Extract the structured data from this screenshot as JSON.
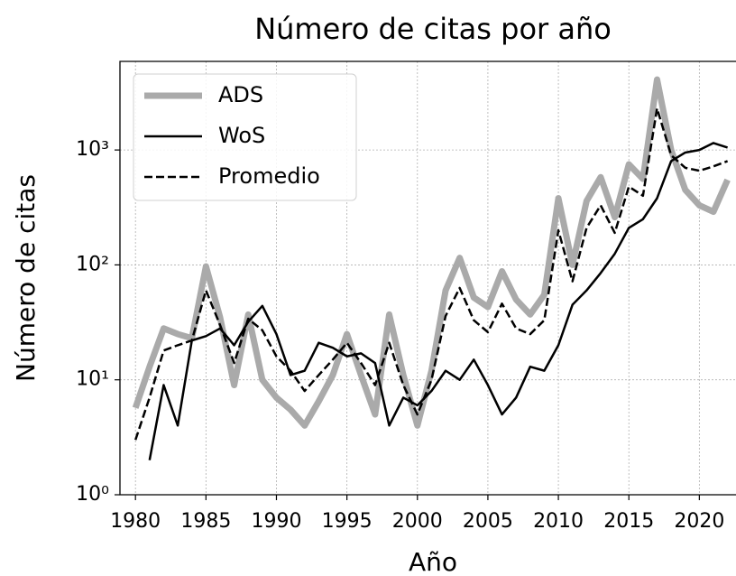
{
  "chart_data": {
    "type": "line",
    "title": "Número de citas por año",
    "xlabel": "Año",
    "ylabel": "Número de citas",
    "x": [
      1980,
      1981,
      1982,
      1983,
      1984,
      1985,
      1986,
      1987,
      1988,
      1989,
      1990,
      1991,
      1992,
      1993,
      1994,
      1995,
      1996,
      1997,
      1998,
      1999,
      2000,
      2001,
      2002,
      2003,
      2004,
      2005,
      2006,
      2007,
      2008,
      2009,
      2010,
      2011,
      2012,
      2013,
      2014,
      2015,
      2016,
      2017,
      2018,
      2019,
      2020,
      2021,
      2022
    ],
    "series": [
      {
        "name": "ADS",
        "color": "#aaaaaa",
        "linewidth": 7,
        "linestyle": "solid",
        "values": [
          5.7,
          13,
          28,
          25,
          23,
          97,
          35,
          9,
          37,
          10,
          7,
          5.5,
          4,
          6.5,
          11,
          25,
          11,
          5,
          37,
          11,
          4,
          12,
          60,
          115,
          52,
          43,
          88,
          50,
          37,
          55,
          380,
          100,
          360,
          580,
          260,
          750,
          560,
          4100,
          1000,
          450,
          330,
          290,
          550
        ]
      },
      {
        "name": "WoS",
        "color": "#000000",
        "linewidth": 2.5,
        "linestyle": "solid",
        "values": [
          null,
          2,
          9,
          4,
          22,
          24,
          28,
          20,
          32,
          44,
          25,
          11,
          12,
          21,
          19,
          16,
          17,
          14,
          4,
          7,
          6,
          8,
          12,
          10,
          15,
          9,
          5,
          7,
          13,
          12,
          20,
          45,
          60,
          85,
          125,
          210,
          250,
          380,
          800,
          950,
          1000,
          1150,
          1050
        ]
      },
      {
        "name": "Promedio",
        "color": "#000000",
        "linewidth": 2.5,
        "linestyle": "dashed",
        "values": [
          3,
          7,
          18,
          20,
          22,
          60,
          30,
          14,
          34,
          27,
          16,
          12,
          8,
          11,
          15,
          21,
          14,
          9,
          21,
          9,
          5,
          10,
          36,
          63,
          33,
          26,
          46,
          28,
          25,
          33,
          200,
          72,
          210,
          330,
          190,
          480,
          400,
          2300,
          900,
          700,
          660,
          720,
          800
        ]
      }
    ],
    "xlim": [
      1978.9,
      2022.6
    ],
    "xticks": [
      1980,
      1985,
      1990,
      1995,
      2000,
      2005,
      2010,
      2015,
      2020
    ],
    "ylim": [
      1,
      5900
    ],
    "yscale": "log",
    "yticks": [
      {
        "value": 1,
        "label": "10⁰"
      },
      {
        "value": 10,
        "label": "10¹"
      },
      {
        "value": 100,
        "label": "10²"
      },
      {
        "value": 1000,
        "label": "10³"
      }
    ],
    "grid": true,
    "legend": "upper left"
  }
}
